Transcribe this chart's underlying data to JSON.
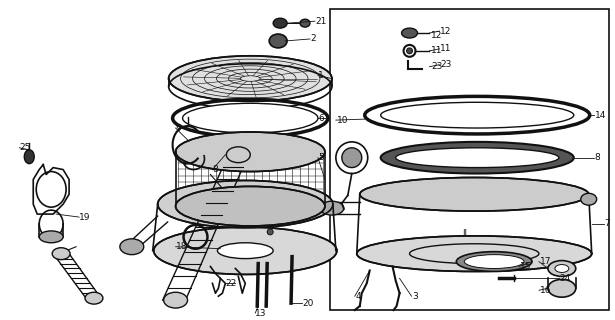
{
  "bg_color": "#ffffff",
  "line_color": "#111111",
  "figsize": [
    6.15,
    3.2
  ],
  "dpi": 100,
  "xlim": [
    0,
    615
  ],
  "ylim": [
    0,
    320
  ]
}
